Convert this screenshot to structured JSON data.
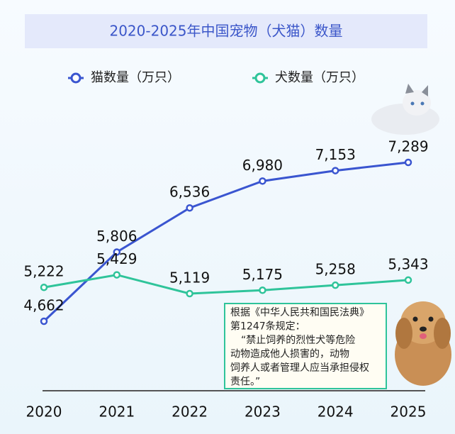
{
  "chart_data": {
    "type": "line",
    "title": "2020-2025年中国宠物（犬猫）数量",
    "categories": [
      "2020",
      "2021",
      "2022",
      "2023",
      "2024",
      "2025"
    ],
    "series": [
      {
        "name": "猫数量（万只）",
        "color": "#3a55d0",
        "values": [
          4662,
          5806,
          6536,
          6980,
          7153,
          7289
        ],
        "value_labels": [
          "4,662",
          "5,806",
          "6,536",
          "6,980",
          "7,153",
          "7,289"
        ]
      },
      {
        "name": "犬数量（万只）",
        "color": "#2fc49a",
        "values": [
          5222,
          5429,
          5119,
          5175,
          5258,
          5343
        ],
        "value_labels": [
          "5,222",
          "5,429",
          "5,119",
          "5,175",
          "5,258",
          "5,343"
        ]
      }
    ],
    "annotation": [
      "根据《中华人民共和国民法典》",
      "第1247条规定：",
      "“禁止饲养的烈性犬等危险",
      "动物造成他人损害的，动物",
      "饲养人或者管理人应当承担侵权",
      "责任。”"
    ]
  }
}
